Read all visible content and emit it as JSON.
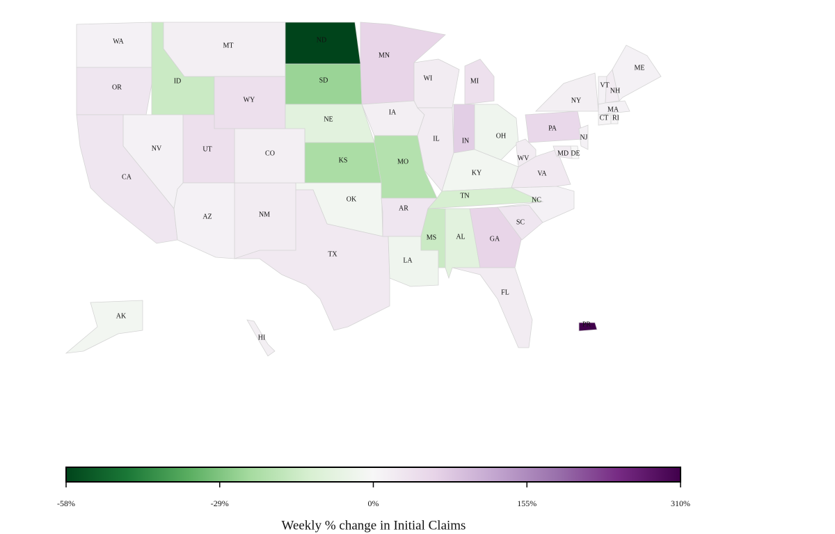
{
  "chart_data": {
    "type": "choropleth",
    "regions": [
      "WA",
      "OR",
      "ID",
      "MT",
      "WY",
      "ND",
      "SD",
      "NE",
      "KS",
      "OK",
      "TX",
      "NM",
      "CO",
      "UT",
      "NV",
      "CA",
      "AZ",
      "MN",
      "WI",
      "IA",
      "IL",
      "MO",
      "MI",
      "IN",
      "OH",
      "KY",
      "TN",
      "AR",
      "LA",
      "MS",
      "AL",
      "GA",
      "FL",
      "SC",
      "NC",
      "VA",
      "WV",
      "PA",
      "NY",
      "VT",
      "NH",
      "ME",
      "MA",
      "CT",
      "RI",
      "NJ",
      "DE",
      "MD",
      "AK",
      "HI",
      "PR"
    ],
    "values": [
      10,
      30,
      -15,
      15,
      40,
      -58,
      -25,
      -8,
      -22,
      -2,
      25,
      20,
      15,
      40,
      10,
      30,
      10,
      60,
      20,
      15,
      20,
      -20,
      40,
      70,
      -3,
      -2,
      -12,
      30,
      -3,
      -15,
      -8,
      60,
      20,
      30,
      10,
      25,
      20,
      55,
      15,
      10,
      20,
      10,
      10,
      5,
      5,
      10,
      0,
      20,
      -2,
      15,
      310
    ],
    "colormap": [
      "#00441b",
      "#1b7837",
      "#5aae61",
      "#a6dba0",
      "#d9f0d3",
      "#f7f7f7",
      "#e7d4e8",
      "#c2a5cf",
      "#9970ab",
      "#762a83",
      "#40004b"
    ],
    "colorbar": {
      "label": "Weekly % change in Initial Claims",
      "ticks": [
        {
          "value": -58,
          "label": "-58%"
        },
        {
          "value": -29,
          "label": "-29%"
        },
        {
          "value": 0,
          "label": "0%"
        },
        {
          "value": 155,
          "label": "155%"
        },
        {
          "value": 310,
          "label": "310%"
        }
      ]
    }
  }
}
